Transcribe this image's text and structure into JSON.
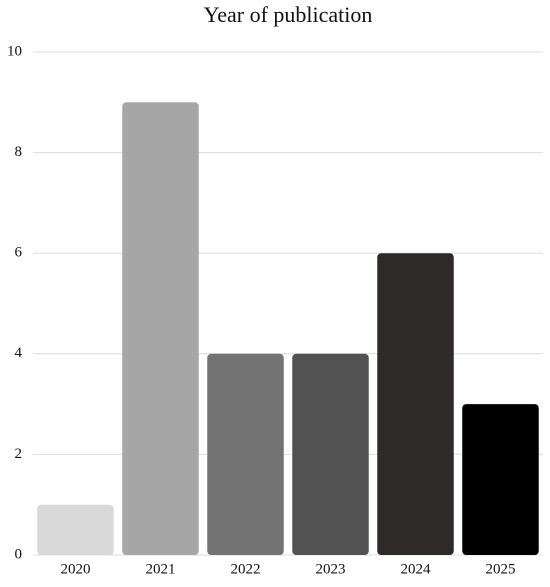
{
  "chart_data": {
    "type": "bar",
    "title": "Year of publication",
    "categories": [
      "2020",
      "2021",
      "2022",
      "2023",
      "2024",
      "2025"
    ],
    "values": [
      1,
      9,
      4,
      4,
      6,
      3
    ],
    "colors": [
      "#d9d9d9",
      "#a6a6a6",
      "#737373",
      "#525252",
      "#2e2a2a",
      "#000000"
    ],
    "ylim": [
      0,
      10
    ],
    "yticks": [
      0,
      2,
      4,
      6,
      8,
      10
    ],
    "grid": true
  }
}
